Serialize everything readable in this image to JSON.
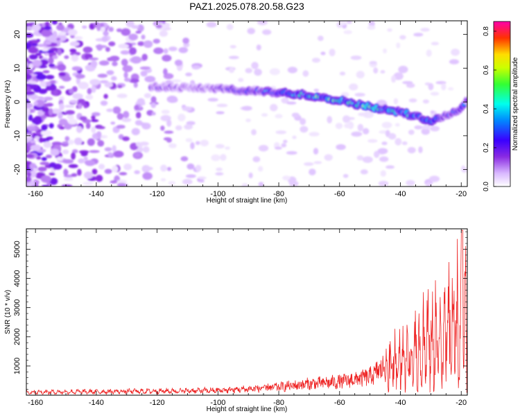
{
  "title": "PAZ1.2025.078.20.58.G23",
  "chart_data": [
    {
      "type": "heatmap",
      "xlabel": "Height of straight line (km)",
      "ylabel": "Frequency (Hz)",
      "xlim": [
        -163,
        -18
      ],
      "ylim": [
        -25,
        24
      ],
      "x_ticks": [
        -160,
        -140,
        -120,
        -100,
        -80,
        -60,
        -40,
        -20
      ],
      "y_ticks": [
        -20,
        -10,
        0,
        10,
        20
      ],
      "colorbar": {
        "label": "Normalized spectral amplitude",
        "range": [
          0.0,
          0.85
        ],
        "ticks": [
          0.0,
          0.2,
          0.4,
          0.6,
          0.8
        ],
        "colormap": "rainbow (white → violet → blue → cyan → green → yellow → red → magenta)"
      },
      "ridge": {
        "description": "dominant frequency track, approximate",
        "x": [
          -118,
          -110,
          -100,
          -90,
          -80,
          -70,
          -60,
          -50,
          -40,
          -30,
          -25,
          -20,
          -18
        ],
        "y": [
          4.5,
          4.2,
          4.0,
          3.2,
          2.8,
          2.0,
          0.5,
          -1.5,
          -3.0,
          -5.5,
          -4.0,
          -2.0,
          0.5
        ],
        "amplitude": [
          0.18,
          0.15,
          0.2,
          0.3,
          0.45,
          0.6,
          0.55,
          0.6,
          0.5,
          0.45,
          0.35,
          0.3,
          0.3
        ]
      }
    },
    {
      "type": "line",
      "xlabel": "Height of straight line (km)",
      "ylabel": "SNR (10 * v/v)",
      "xlim": [
        -163,
        -18
      ],
      "ylim": [
        0,
        5700
      ],
      "x_ticks": [
        -160,
        -140,
        -120,
        -100,
        -80,
        -60,
        -40,
        -20
      ],
      "y_ticks": [
        1000,
        2000,
        3000,
        4000,
        5000
      ],
      "series": [
        {
          "color": "#ee2222",
          "envelope_x": [
            -163,
            -140,
            -120,
            -100,
            -90,
            -80,
            -70,
            -60,
            -50,
            -45,
            -40,
            -35,
            -30,
            -25,
            -20,
            -18
          ],
          "envelope_y": [
            150,
            170,
            200,
            230,
            300,
            400,
            550,
            650,
            900,
            1400,
            2200,
            2800,
            3400,
            3600,
            4800,
            4200
          ]
        }
      ]
    }
  ]
}
